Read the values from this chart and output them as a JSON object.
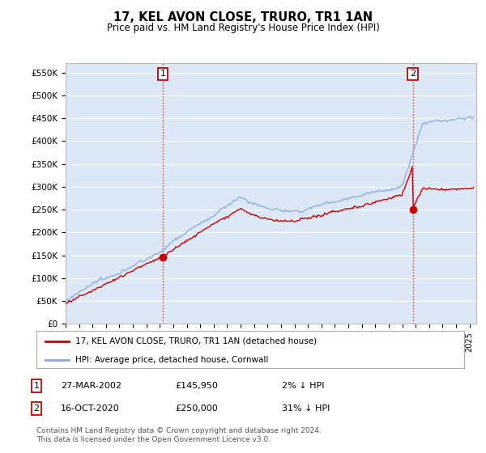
{
  "title": "17, KEL AVON CLOSE, TRURO, TR1 1AN",
  "subtitle": "Price paid vs. HM Land Registry's House Price Index (HPI)",
  "ylabel_ticks": [
    "£0",
    "£50K",
    "£100K",
    "£150K",
    "£200K",
    "£250K",
    "£300K",
    "£350K",
    "£400K",
    "£450K",
    "£500K",
    "£550K"
  ],
  "ytick_values": [
    0,
    50000,
    100000,
    150000,
    200000,
    250000,
    300000,
    350000,
    400000,
    450000,
    500000,
    550000
  ],
  "ylim": [
    0,
    570000
  ],
  "xlim_start": 1995.0,
  "xlim_end": 2025.5,
  "transaction1": {
    "date_num": 2002.23,
    "value": 145950,
    "label": "1"
  },
  "transaction2": {
    "date_num": 2020.79,
    "value": 250000,
    "label": "2"
  },
  "vline_color": "#cc0000",
  "vline_style": ":",
  "hpi_line_color": "#88aadd",
  "price_line_color": "#cc0000",
  "legend_label1": "17, KEL AVON CLOSE, TRURO, TR1 1AN (detached house)",
  "legend_label2": "HPI: Average price, detached house, Cornwall",
  "table_rows": [
    {
      "num": "1",
      "date": "27-MAR-2002",
      "price": "£145,950",
      "hpi": "2% ↓ HPI"
    },
    {
      "num": "2",
      "date": "16-OCT-2020",
      "price": "£250,000",
      "hpi": "31% ↓ HPI"
    }
  ],
  "footnote": "Contains HM Land Registry data © Crown copyright and database right 2024.\nThis data is licensed under the Open Government Licence v3.0.",
  "bg_color": "#ffffff",
  "plot_bg_color": "#dce8f5",
  "grid_color": "#ffffff",
  "annotation_box_color": "#cc0000"
}
